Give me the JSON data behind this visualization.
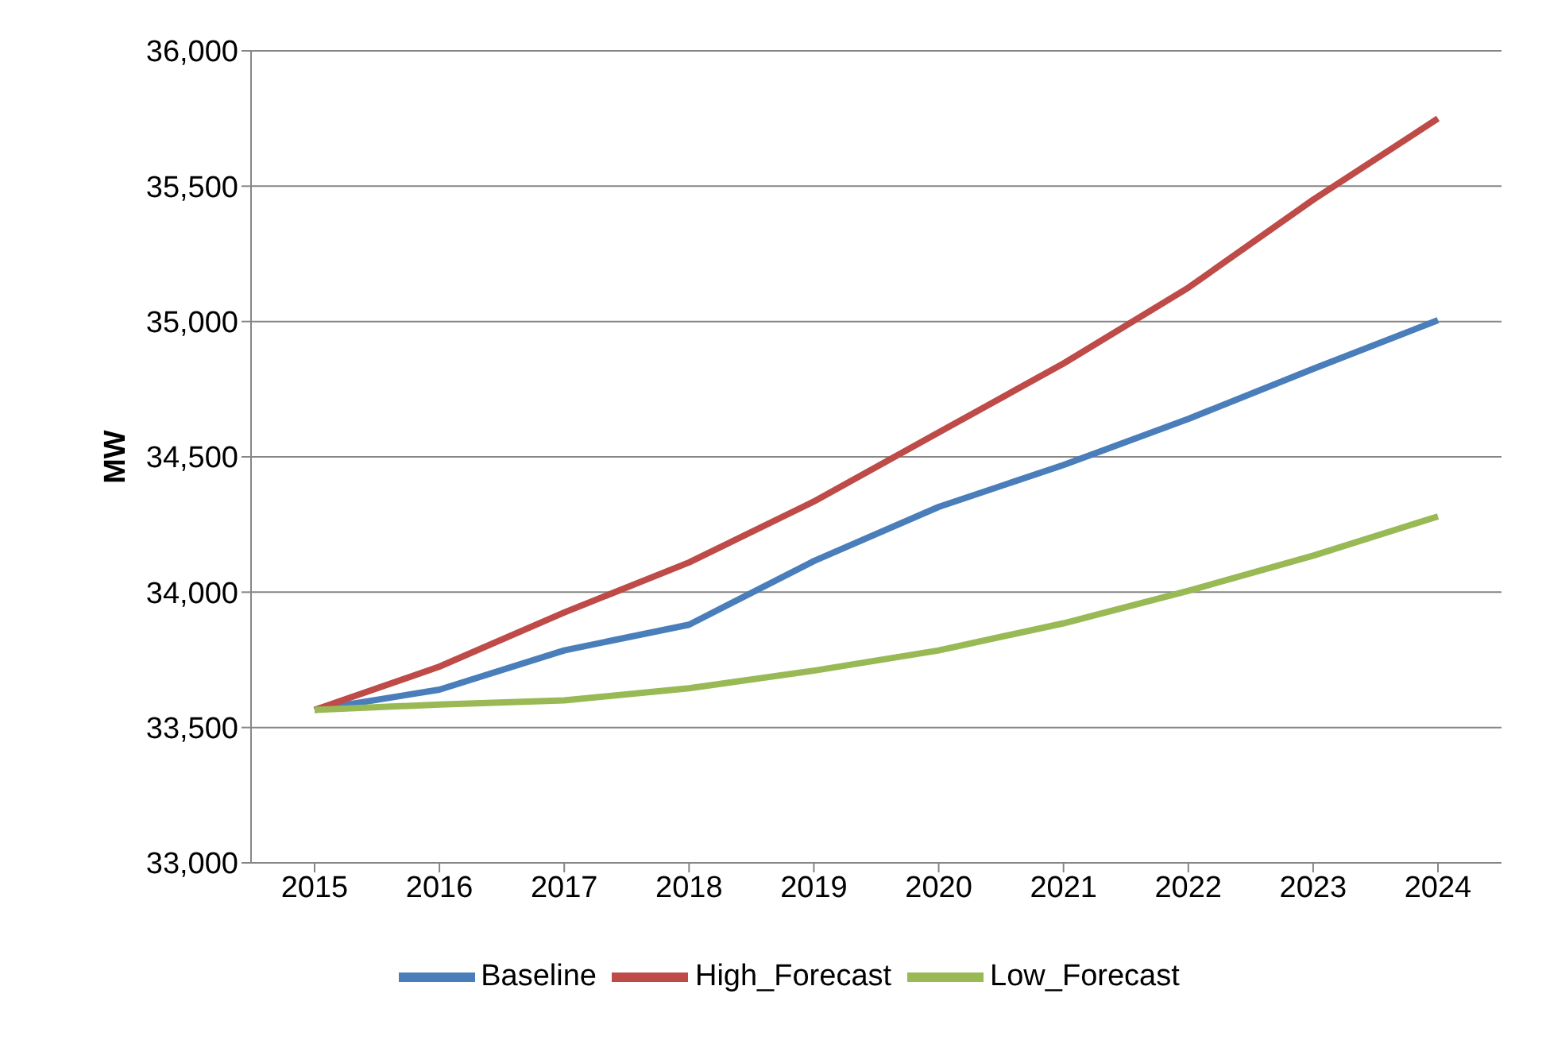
{
  "chart_data": {
    "type": "line",
    "ylabel": "MW",
    "categories": [
      "2015",
      "2016",
      "2017",
      "2018",
      "2019",
      "2020",
      "2021",
      "2022",
      "2023",
      "2024"
    ],
    "series": [
      {
        "name": "Baseline",
        "color": "#4a7ebb",
        "values": [
          33565,
          33640,
          33785,
          33880,
          34115,
          34315,
          34470,
          34640,
          34825,
          35005
        ]
      },
      {
        "name": "High_Forecast",
        "color": "#be4b48",
        "values": [
          33565,
          33725,
          33925,
          34110,
          34335,
          34590,
          34845,
          35125,
          35450,
          35750
        ]
      },
      {
        "name": "Low_Forecast",
        "color": "#98b954",
        "values": [
          33565,
          33585,
          33600,
          33645,
          33710,
          33785,
          33885,
          34005,
          34135,
          34280
        ]
      }
    ],
    "ylim": [
      33000,
      36000
    ],
    "yticks": [
      {
        "value": 33000,
        "label": "33,000"
      },
      {
        "value": 33500,
        "label": "33,500"
      },
      {
        "value": 34000,
        "label": "34,000"
      },
      {
        "value": 34500,
        "label": "34,500"
      },
      {
        "value": 35000,
        "label": "35,000"
      },
      {
        "value": 35500,
        "label": "35,500"
      },
      {
        "value": 36000,
        "label": "36,000"
      }
    ],
    "grid": "y",
    "legend": "bottom",
    "marker": "none",
    "line_style": "solid"
  }
}
